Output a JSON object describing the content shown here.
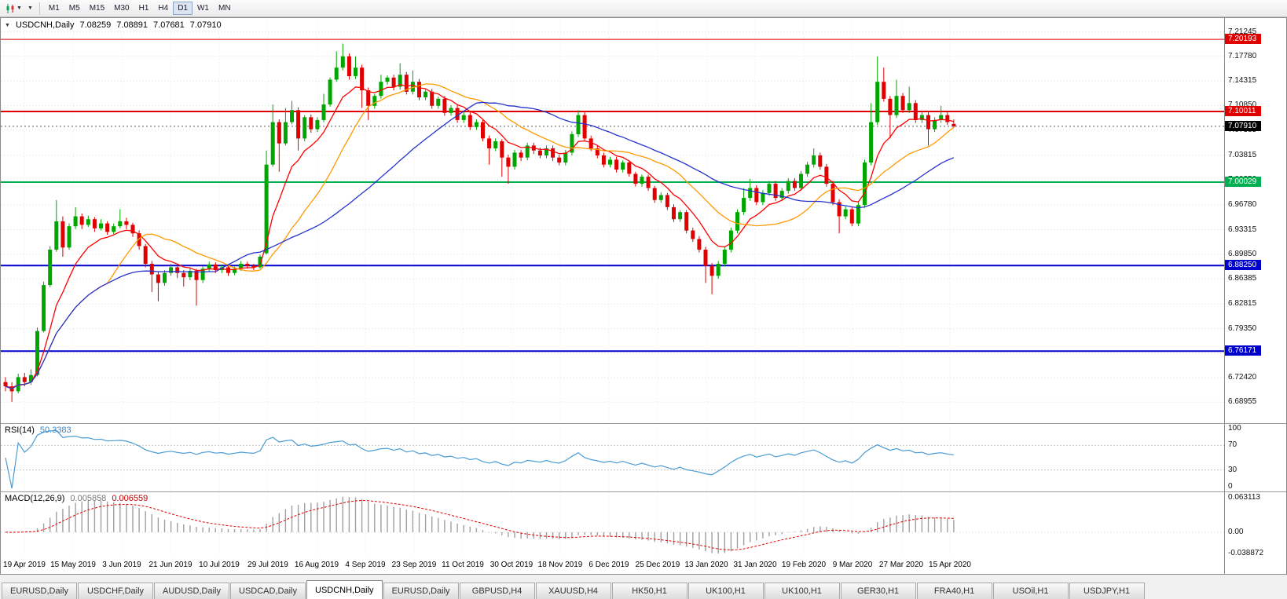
{
  "toolbar": {
    "timeframes": [
      {
        "label": "M1",
        "active": false
      },
      {
        "label": "M5",
        "active": false
      },
      {
        "label": "M15",
        "active": false
      },
      {
        "label": "M30",
        "active": false
      },
      {
        "label": "H1",
        "active": false
      },
      {
        "label": "H4",
        "active": false
      },
      {
        "label": "D1",
        "active": true
      },
      {
        "label": "W1",
        "active": false
      },
      {
        "label": "MN",
        "active": false
      }
    ]
  },
  "chart": {
    "symbol_label": "USDCNH,Daily"
  },
  "chart_data": {
    "type": "candlestick",
    "symbol": "USDCNH",
    "timeframe": "Daily",
    "current": {
      "open": "7.08259",
      "high": "7.08891",
      "low": "7.07681",
      "close": "7.07910"
    },
    "y_range": [
      6.66,
      7.232
    ],
    "price_ticks": [
      "7.21245",
      "7.17780",
      "7.14315",
      "7.10850",
      "7.07385",
      "7.03815",
      "7.00350",
      "6.96780",
      "6.93315",
      "6.89850",
      "6.86385",
      "6.82815",
      "6.79350",
      "6.75885",
      "6.72420",
      "6.68955"
    ],
    "date_labels": [
      "19 Apr 2019",
      "15 May 2019",
      "3 Jun 2019",
      "21 Jun 2019",
      "10 Jul 2019",
      "29 Jul 2019",
      "16 Aug 2019",
      "4 Sep 2019",
      "23 Sep 2019",
      "11 Oct 2019",
      "30 Oct 2019",
      "18 Nov 2019",
      "6 Dec 2019",
      "25 Dec 2019",
      "13 Jan 2020",
      "31 Jan 2020",
      "19 Feb 2020",
      "9 Mar 2020",
      "27 Mar 2020",
      "15 Apr 2020"
    ],
    "hlines": [
      {
        "value": 7.20193,
        "label": "7.20193",
        "color": "#e00000",
        "width": 1
      },
      {
        "value": 7.10011,
        "label": "7.10011",
        "color": "#e00000",
        "width": 2
      },
      {
        "value": 7.00029,
        "label": "7.00029",
        "color": "#00b050",
        "width": 2
      },
      {
        "value": 6.8825,
        "label": "6.88250",
        "color": "#0000cc",
        "width": 2
      },
      {
        "value": 6.76171,
        "label": "6.76171",
        "color": "#0000cc",
        "width": 2
      }
    ],
    "current_price": {
      "value": 7.0791,
      "label": "7.07910",
      "color": "#000000"
    },
    "colors": {
      "up": "#00a600",
      "down": "#e00000",
      "grid": "#dcdcdc"
    },
    "ma_lines": [
      {
        "period": 8,
        "type": "ema",
        "color": "#ff0000"
      },
      {
        "period": 17,
        "type": "sma",
        "color": "#ff9900"
      },
      {
        "period": 34,
        "type": "sma",
        "color": "#2633cc"
      }
    ],
    "rsi": {
      "label": "RSI(14)",
      "value": "50.3383",
      "period": 14,
      "levels": [
        100,
        70,
        30,
        0
      ],
      "line_color": "#4a9bd4"
    },
    "macd": {
      "label": "MACD(12,26,9)",
      "value_main": "0.005858",
      "value_signal": "0.006559",
      "fast": 12,
      "slow": 26,
      "signal_period": 9,
      "axis_labels": [
        "0.063113",
        "0.00",
        "-0.038872"
      ],
      "histogram_color": "#a0a0a0",
      "signal_color": "#e00000"
    },
    "candles": [
      [
        6.718,
        6.725,
        6.705,
        6.712
      ],
      [
        6.712,
        6.718,
        6.69,
        6.705
      ],
      [
        6.705,
        6.73,
        6.702,
        6.725
      ],
      [
        6.725,
        6.731,
        6.712,
        6.718
      ],
      [
        6.718,
        6.736,
        6.714,
        6.728
      ],
      [
        6.728,
        6.795,
        6.726,
        6.79
      ],
      [
        6.79,
        6.86,
        6.788,
        6.855
      ],
      [
        6.855,
        6.91,
        6.852,
        6.905
      ],
      [
        6.905,
        6.975,
        6.902,
        6.945
      ],
      [
        6.945,
        6.952,
        6.895,
        6.908
      ],
      [
        6.908,
        6.942,
        6.905,
        6.938
      ],
      [
        6.938,
        6.965,
        6.934,
        6.952
      ],
      [
        6.952,
        6.956,
        6.934,
        6.94
      ],
      [
        6.94,
        6.953,
        6.937,
        6.948
      ],
      [
        6.948,
        6.951,
        6.93,
        6.935
      ],
      [
        6.935,
        6.948,
        6.932,
        6.942
      ],
      [
        6.942,
        6.945,
        6.926,
        6.93
      ],
      [
        6.93,
        6.942,
        6.927,
        6.938
      ],
      [
        6.938,
        6.962,
        6.935,
        6.945
      ],
      [
        6.945,
        6.95,
        6.934,
        6.94
      ],
      [
        6.94,
        6.943,
        6.923,
        6.928
      ],
      [
        6.928,
        6.932,
        6.905,
        6.91
      ],
      [
        6.91,
        6.913,
        6.88,
        6.885
      ],
      [
        6.885,
        6.889,
        6.845,
        6.87
      ],
      [
        6.87,
        6.874,
        6.832,
        6.858
      ],
      [
        6.858,
        6.876,
        6.854,
        6.872
      ],
      [
        6.872,
        6.885,
        6.868,
        6.88
      ],
      [
        6.88,
        6.884,
        6.865,
        6.872
      ],
      [
        6.872,
        6.876,
        6.853,
        6.866
      ],
      [
        6.866,
        6.879,
        6.862,
        6.875
      ],
      [
        6.875,
        6.878,
        6.826,
        6.862
      ],
      [
        6.862,
        6.881,
        6.858,
        6.878
      ],
      [
        6.878,
        6.888,
        6.874,
        6.884
      ],
      [
        6.884,
        6.887,
        6.872,
        6.876
      ],
      [
        6.876,
        6.883,
        6.872,
        6.88
      ],
      [
        6.88,
        6.884,
        6.868,
        6.872
      ],
      [
        6.872,
        6.881,
        6.869,
        6.878
      ],
      [
        6.878,
        6.889,
        6.875,
        6.885
      ],
      [
        6.885,
        6.888,
        6.878,
        6.882
      ],
      [
        6.882,
        6.885,
        6.876,
        6.88
      ],
      [
        6.88,
        6.898,
        6.878,
        6.895
      ],
      [
        6.9,
        7.045,
        6.898,
        7.025
      ],
      [
        7.025,
        7.11,
        7.022,
        7.085
      ],
      [
        7.085,
        7.089,
        7.015,
        7.055
      ],
      [
        7.055,
        7.105,
        7.052,
        7.085
      ],
      [
        7.085,
        7.115,
        7.082,
        7.102
      ],
      [
        7.102,
        7.106,
        7.045,
        7.062
      ],
      [
        7.062,
        7.095,
        7.058,
        7.092
      ],
      [
        7.092,
        7.096,
        7.07,
        7.075
      ],
      [
        7.075,
        7.092,
        7.071,
        7.088
      ],
      [
        7.088,
        7.125,
        7.085,
        7.11
      ],
      [
        7.11,
        7.148,
        7.107,
        7.145
      ],
      [
        7.145,
        7.185,
        7.142,
        7.162
      ],
      [
        7.162,
        7.196,
        7.158,
        7.178
      ],
      [
        7.178,
        7.182,
        7.145,
        7.15
      ],
      [
        7.15,
        7.178,
        7.146,
        7.162
      ],
      [
        7.162,
        7.166,
        7.105,
        7.13
      ],
      [
        7.13,
        7.134,
        7.088,
        7.108
      ],
      [
        7.108,
        7.125,
        7.104,
        7.122
      ],
      [
        7.122,
        7.152,
        7.118,
        7.142
      ],
      [
        7.142,
        7.151,
        7.138,
        7.148
      ],
      [
        7.148,
        7.152,
        7.13,
        7.135
      ],
      [
        7.135,
        7.168,
        7.131,
        7.152
      ],
      [
        7.152,
        7.156,
        7.124,
        7.128
      ],
      [
        7.128,
        7.158,
        7.124,
        7.142
      ],
      [
        7.142,
        7.146,
        7.116,
        7.12
      ],
      [
        7.12,
        7.131,
        7.116,
        7.128
      ],
      [
        7.128,
        7.132,
        7.104,
        7.108
      ],
      [
        7.108,
        7.121,
        7.104,
        7.118
      ],
      [
        7.118,
        7.122,
        7.094,
        7.098
      ],
      [
        7.098,
        7.109,
        7.094,
        7.105
      ],
      [
        7.105,
        7.109,
        7.084,
        7.088
      ],
      [
        7.088,
        7.099,
        7.084,
        7.095
      ],
      [
        7.095,
        7.099,
        7.074,
        7.078
      ],
      [
        7.078,
        7.089,
        7.074,
        7.085
      ],
      [
        7.085,
        7.088,
        7.058,
        7.062
      ],
      [
        7.062,
        7.066,
        7.025,
        7.048
      ],
      [
        7.048,
        7.062,
        7.044,
        7.058
      ],
      [
        7.058,
        7.061,
        7.008,
        7.035
      ],
      [
        7.035,
        7.039,
        6.998,
        7.022
      ],
      [
        7.022,
        7.046,
        7.018,
        7.042
      ],
      [
        7.042,
        7.046,
        7.03,
        7.035
      ],
      [
        7.035,
        7.056,
        7.031,
        7.052
      ],
      [
        7.052,
        7.056,
        7.04,
        7.045
      ],
      [
        7.045,
        7.049,
        7.034,
        7.038
      ],
      [
        7.038,
        7.052,
        7.034,
        7.048
      ],
      [
        7.048,
        7.052,
        7.03,
        7.035
      ],
      [
        7.035,
        7.039,
        7.024,
        7.028
      ],
      [
        7.028,
        7.046,
        7.024,
        7.042
      ],
      [
        7.042,
        7.072,
        7.038,
        7.068
      ],
      [
        7.068,
        7.102,
        7.064,
        7.095
      ],
      [
        7.095,
        7.099,
        7.058,
        7.062
      ],
      [
        7.062,
        7.066,
        7.044,
        7.048
      ],
      [
        7.048,
        7.052,
        7.034,
        7.038
      ],
      [
        7.038,
        7.042,
        7.021,
        7.025
      ],
      [
        7.025,
        7.036,
        7.021,
        7.032
      ],
      [
        7.032,
        7.036,
        7.014,
        7.018
      ],
      [
        7.018,
        7.031,
        7.014,
        7.028
      ],
      [
        7.028,
        7.031,
        7.008,
        7.012
      ],
      [
        7.012,
        7.015,
        6.994,
        6.998
      ],
      [
        6.998,
        7.011,
        6.994,
        7.008
      ],
      [
        7.008,
        7.011,
        6.988,
        6.992
      ],
      [
        6.992,
        6.995,
        6.971,
        6.975
      ],
      [
        6.975,
        6.986,
        6.971,
        6.982
      ],
      [
        6.982,
        6.985,
        6.961,
        6.965
      ],
      [
        6.965,
        6.969,
        6.944,
        6.948
      ],
      [
        6.948,
        6.961,
        6.944,
        6.958
      ],
      [
        6.958,
        6.961,
        6.928,
        6.932
      ],
      [
        6.932,
        6.936,
        6.916,
        6.92
      ],
      [
        6.92,
        6.924,
        6.901,
        6.905
      ],
      [
        6.905,
        6.909,
        6.858,
        6.882
      ],
      [
        6.882,
        6.886,
        6.842,
        6.868
      ],
      [
        6.868,
        6.889,
        6.864,
        6.885
      ],
      [
        6.885,
        6.909,
        6.881,
        6.905
      ],
      [
        6.905,
        6.936,
        6.901,
        6.932
      ],
      [
        6.932,
        6.962,
        6.928,
        6.958
      ],
      [
        6.958,
        6.992,
        6.954,
        6.978
      ],
      [
        6.978,
        7.005,
        6.974,
        6.992
      ],
      [
        6.992,
        6.996,
        6.968,
        6.972
      ],
      [
        6.972,
        6.989,
        6.968,
        6.985
      ],
      [
        6.985,
        7.002,
        6.981,
        6.998
      ],
      [
        6.998,
        7.002,
        6.974,
        6.978
      ],
      [
        6.978,
        6.992,
        6.974,
        6.988
      ],
      [
        6.988,
        7.006,
        6.984,
        7.002
      ],
      [
        7.002,
        7.006,
        6.988,
        6.992
      ],
      [
        6.992,
        7.016,
        6.988,
        7.012
      ],
      [
        7.012,
        7.029,
        7.008,
        7.025
      ],
      [
        7.025,
        7.048,
        7.021,
        7.038
      ],
      [
        7.038,
        7.042,
        7.018,
        7.022
      ],
      [
        7.022,
        7.026,
        6.994,
        6.998
      ],
      [
        6.998,
        7.002,
        6.968,
        6.972
      ],
      [
        6.972,
        6.976,
        6.928,
        6.952
      ],
      [
        6.952,
        6.966,
        6.948,
        6.962
      ],
      [
        6.962,
        6.966,
        6.938,
        6.942
      ],
      [
        6.942,
        6.972,
        6.938,
        6.968
      ],
      [
        6.968,
        7.032,
        6.964,
        7.028
      ],
      [
        7.028,
        7.112,
        7.024,
        7.085
      ],
      [
        7.085,
        7.178,
        7.081,
        7.142
      ],
      [
        7.142,
        7.162,
        7.114,
        7.118
      ],
      [
        7.118,
        7.122,
        7.062,
        7.095
      ],
      [
        7.095,
        7.145,
        7.091,
        7.122
      ],
      [
        7.122,
        7.126,
        7.098,
        7.102
      ],
      [
        7.102,
        7.135,
        7.098,
        7.112
      ],
      [
        7.112,
        7.116,
        7.084,
        7.088
      ],
      [
        7.088,
        7.099,
        7.084,
        7.095
      ],
      [
        7.095,
        7.099,
        7.052,
        7.075
      ],
      [
        7.075,
        7.092,
        7.071,
        7.088
      ],
      [
        7.088,
        7.108,
        7.084,
        7.095
      ],
      [
        7.095,
        7.099,
        7.081,
        7.085
      ],
      [
        7.08259,
        7.08891,
        7.07681,
        7.0791
      ]
    ]
  },
  "tabs": [
    {
      "label": "EURUSD,Daily",
      "active": false
    },
    {
      "label": "USDCHF,Daily",
      "active": false
    },
    {
      "label": "AUDUSD,Daily",
      "active": false
    },
    {
      "label": "USDCAD,Daily",
      "active": false
    },
    {
      "label": "USDCNH,Daily",
      "active": true
    },
    {
      "label": "EURUSD,Daily",
      "active": false
    },
    {
      "label": "GBPUSD,H4",
      "active": false
    },
    {
      "label": "XAUUSD,H4",
      "active": false
    },
    {
      "label": "HK50,H1",
      "active": false
    },
    {
      "label": "UK100,H1",
      "active": false
    },
    {
      "label": "UK100,H1",
      "active": false
    },
    {
      "label": "GER30,H1",
      "active": false
    },
    {
      "label": "FRA40,H1",
      "active": false
    },
    {
      "label": "USOil,H1",
      "active": false
    },
    {
      "label": "USDJPY,H1",
      "active": false
    }
  ]
}
